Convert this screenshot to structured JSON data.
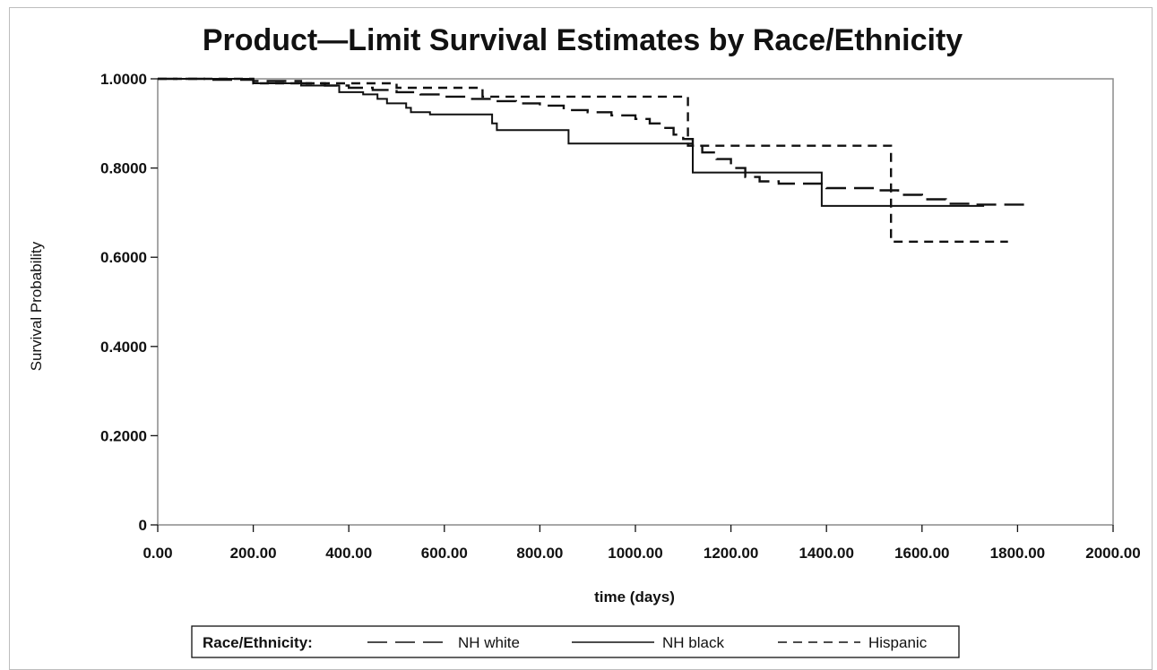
{
  "chart_data": {
    "type": "line",
    "title": "Product—Limit Survival Estimates by Race/Ethnicity",
    "xlabel": "time  (days)",
    "ylabel": "Survival  Probability",
    "xlim": [
      0,
      2000
    ],
    "ylim": [
      0,
      1
    ],
    "x_ticks": [
      0,
      200,
      400,
      600,
      800,
      1000,
      1200,
      1400,
      1600,
      1800,
      2000
    ],
    "x_tick_labels": [
      "0.00",
      "200.00",
      "400.00",
      "600.00",
      "800.00",
      "1000.00",
      "1200.00",
      "1400.00",
      "1600.00",
      "1800.00",
      "2000.00"
    ],
    "y_ticks": [
      0,
      0.2,
      0.4,
      0.6,
      0.8,
      1.0
    ],
    "y_tick_labels": [
      "0",
      "0.2000",
      "0.4000",
      "0.6000",
      "0.8000",
      "1.0000"
    ],
    "grid": false,
    "legend": {
      "title": "Race/Ethnicity:",
      "position": "bottom"
    },
    "series": [
      {
        "name": "NH white",
        "style": "long-dash",
        "x": [
          0,
          100,
          200,
          300,
          350,
          400,
          450,
          500,
          550,
          600,
          650,
          700,
          750,
          800,
          850,
          900,
          950,
          1000,
          1030,
          1060,
          1080,
          1100,
          1120,
          1140,
          1170,
          1200,
          1230,
          1260,
          1300,
          1350,
          1400,
          1450,
          1500,
          1550,
          1600,
          1650,
          1700,
          1750,
          1800,
          1830
        ],
        "y": [
          1.0,
          0.998,
          0.995,
          0.99,
          0.985,
          0.98,
          0.975,
          0.97,
          0.965,
          0.96,
          0.955,
          0.95,
          0.945,
          0.94,
          0.93,
          0.925,
          0.918,
          0.91,
          0.9,
          0.89,
          0.875,
          0.865,
          0.85,
          0.835,
          0.82,
          0.8,
          0.78,
          0.77,
          0.765,
          0.765,
          0.755,
          0.755,
          0.75,
          0.74,
          0.73,
          0.72,
          0.718,
          0.718,
          0.718,
          0.718
        ]
      },
      {
        "name": "NH black",
        "style": "solid",
        "x": [
          0,
          200,
          300,
          380,
          430,
          460,
          480,
          520,
          530,
          570,
          640,
          700,
          710,
          760,
          860,
          900,
          1000,
          1080,
          1120,
          1200,
          1300,
          1390,
          1450,
          1500,
          1600,
          1700,
          1730
        ],
        "y": [
          1.0,
          0.99,
          0.985,
          0.97,
          0.965,
          0.955,
          0.945,
          0.935,
          0.925,
          0.92,
          0.92,
          0.9,
          0.885,
          0.885,
          0.855,
          0.855,
          0.855,
          0.855,
          0.79,
          0.79,
          0.79,
          0.715,
          0.715,
          0.715,
          0.715,
          0.715,
          0.715
        ]
      },
      {
        "name": "Hispanic",
        "style": "short-dash",
        "x": [
          0,
          200,
          400,
          500,
          600,
          680,
          700,
          800,
          900,
          1000,
          1050,
          1100,
          1110,
          1200,
          1300,
          1400,
          1500,
          1535,
          1600,
          1700,
          1780
        ],
        "y": [
          1.0,
          0.99,
          0.99,
          0.98,
          0.98,
          0.96,
          0.96,
          0.96,
          0.96,
          0.96,
          0.96,
          0.96,
          0.85,
          0.85,
          0.85,
          0.85,
          0.85,
          0.635,
          0.635,
          0.635,
          0.635
        ]
      }
    ]
  }
}
